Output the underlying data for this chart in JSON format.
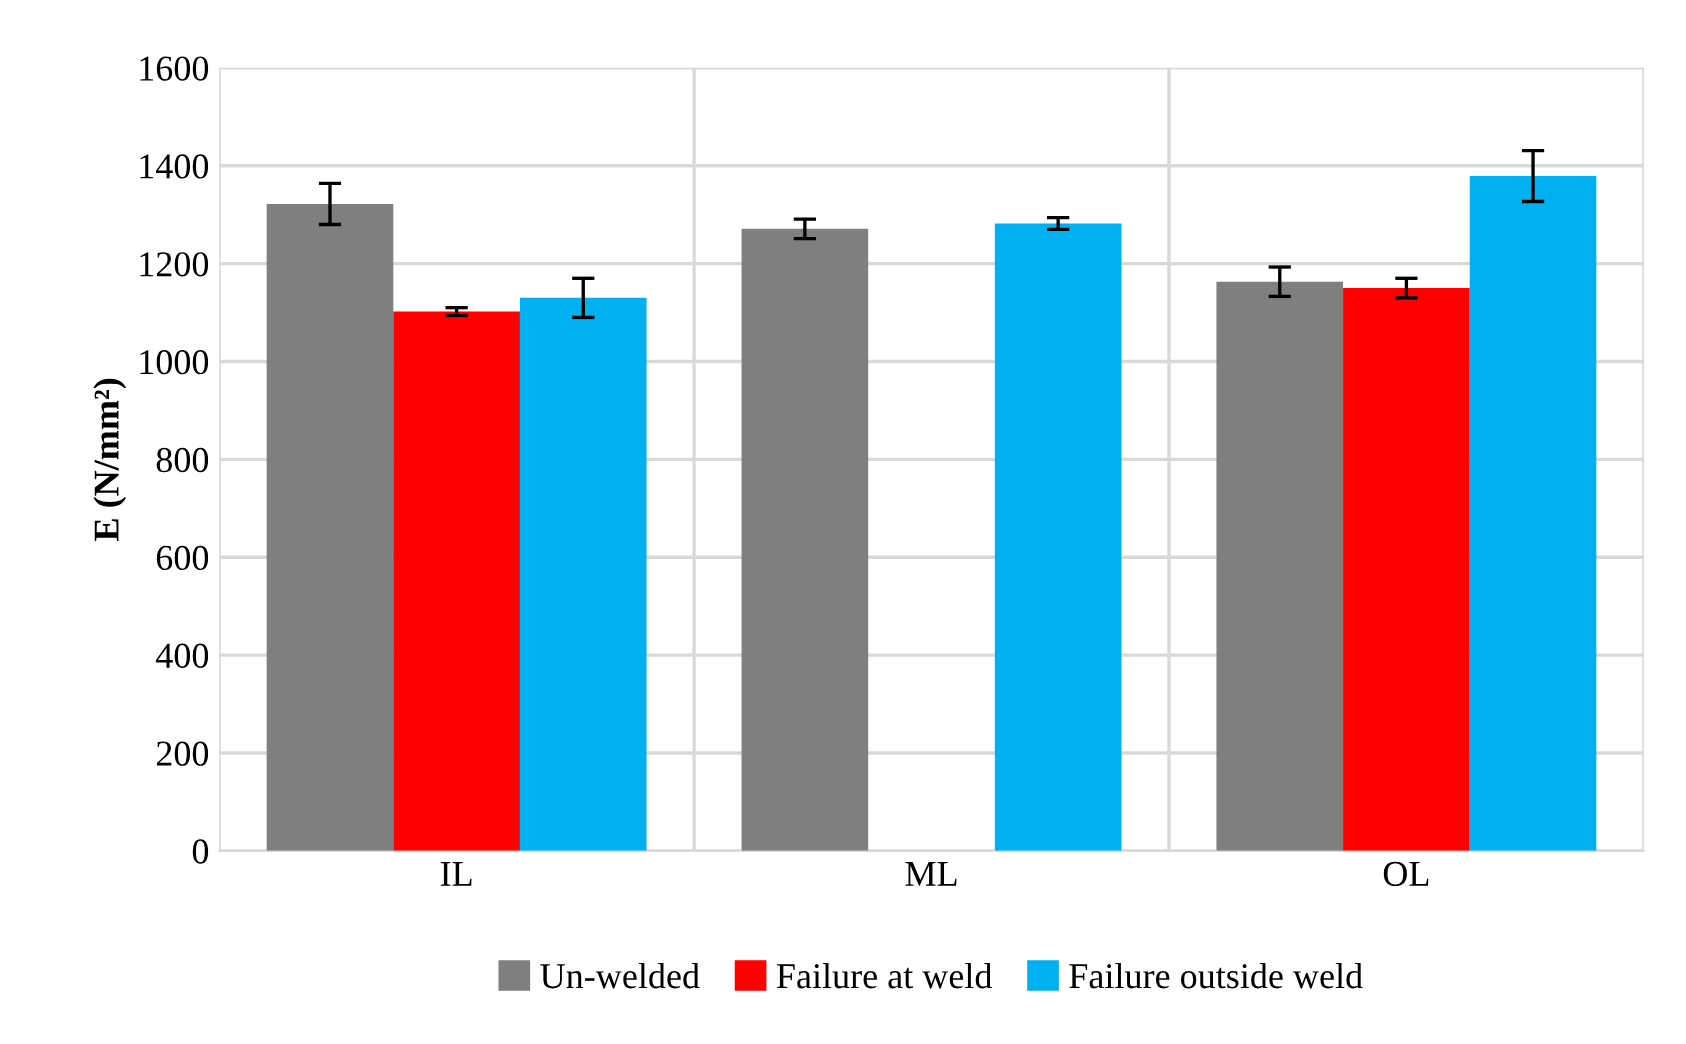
{
  "chart_data": {
    "type": "bar",
    "ylabel": "E (N/mm²)",
    "categories": [
      "IL",
      "ML",
      "OL"
    ],
    "series": [
      {
        "name": "Un-welded",
        "color": "#7f7f7f",
        "values": [
          1322,
          1271,
          1163
        ],
        "errors": [
          42,
          20,
          30
        ]
      },
      {
        "name": "Failure at weld",
        "color": "#ff0000",
        "values": [
          1102,
          null,
          1150
        ],
        "errors": [
          8,
          null,
          20
        ]
      },
      {
        "name": "Failure outside weld",
        "color": "#00b0f0",
        "values": [
          1130,
          1282,
          1379
        ],
        "errors": [
          40,
          12,
          52
        ]
      }
    ],
    "ylim": [
      0,
      1600
    ],
    "yticks": [
      0,
      200,
      400,
      600,
      800,
      1000,
      1200,
      1400,
      1600
    ],
    "grid": true,
    "legend": "bottom"
  }
}
